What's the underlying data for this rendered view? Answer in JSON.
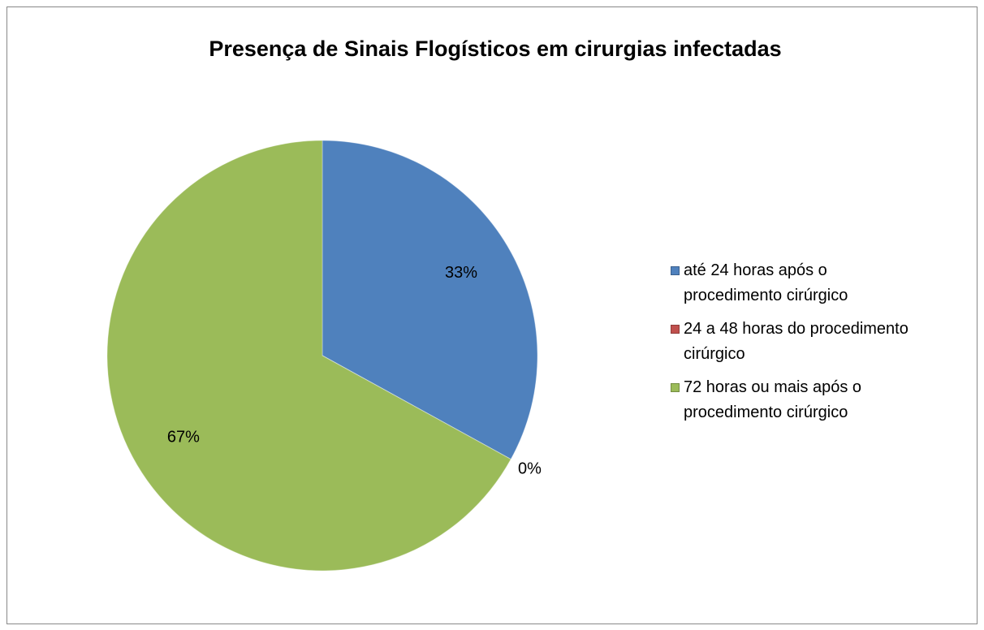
{
  "chart_data": {
    "type": "pie",
    "title": "Presença de Sinais Flogísticos em cirurgias infectadas",
    "categories": [
      "até 24 horas após o procedimento cirúrgico",
      "24 a 48 horas do procedimento cirúrgico",
      "72 horas ou mais após o procedimento cirúrgico"
    ],
    "values": [
      33,
      0,
      67
    ],
    "value_labels": [
      "33%",
      "0%",
      "67%"
    ],
    "colors": [
      "#4f81bd",
      "#c0504d",
      "#9bbb59"
    ],
    "legend": "right"
  }
}
